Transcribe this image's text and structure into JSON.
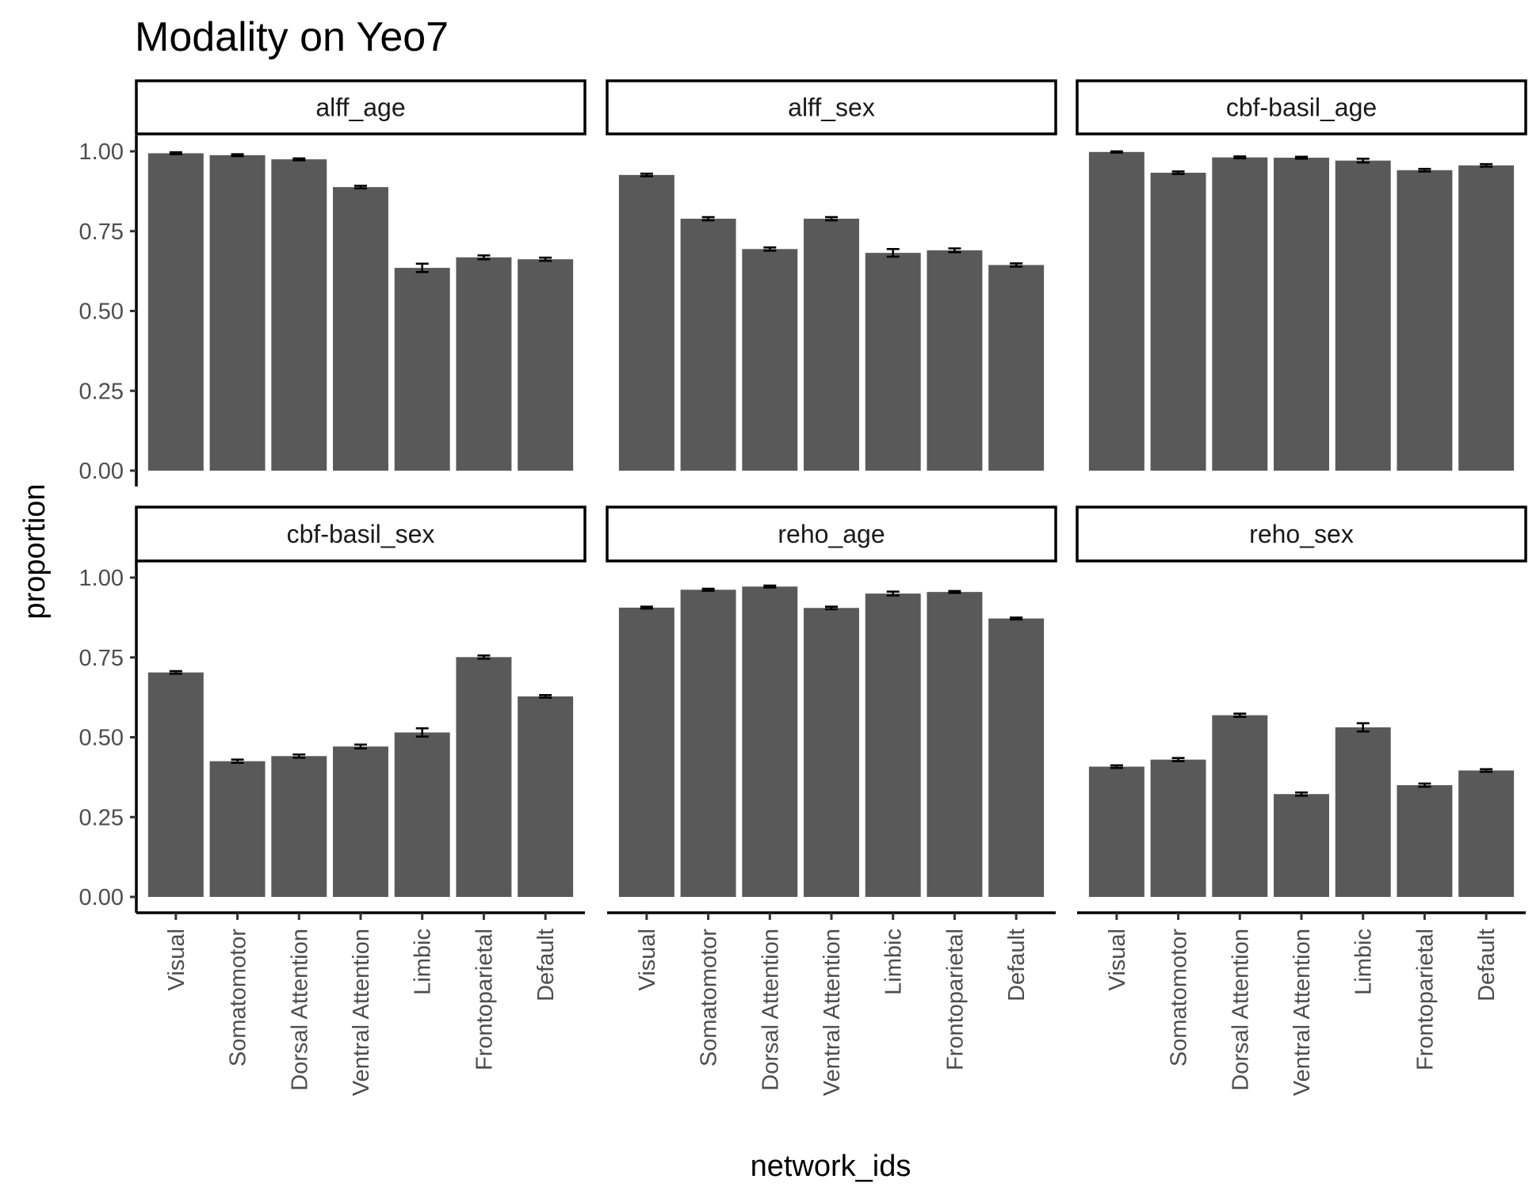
{
  "chart_data": {
    "type": "bar",
    "title": "Modality on Yeo7",
    "xlabel": "network_ids",
    "ylabel": "proportion",
    "ylim": [
      0,
      1.05
    ],
    "yticks": [
      0,
      0.25,
      0.5,
      0.75,
      1
    ],
    "ytick_labels": [
      "0.00",
      "0.25",
      "0.50",
      "0.75",
      "1.00"
    ],
    "categories": [
      "Visual",
      "Somatomotor",
      "Dorsal Attention",
      "Ventral Attention",
      "Limbic",
      "Frontoparietal",
      "Default"
    ],
    "grid": false,
    "legend": "none",
    "bar_color": "#595959",
    "facets": [
      {
        "name": "alff_age",
        "values": [
          0.994,
          0.988,
          0.975,
          0.888,
          0.635,
          0.668,
          0.662
        ],
        "errors": [
          0.003,
          0.003,
          0.003,
          0.004,
          0.013,
          0.006,
          0.005
        ]
      },
      {
        "name": "alff_sex",
        "values": [
          0.926,
          0.789,
          0.694,
          0.789,
          0.682,
          0.69,
          0.644
        ],
        "errors": [
          0.004,
          0.005,
          0.005,
          0.005,
          0.012,
          0.006,
          0.005
        ]
      },
      {
        "name": "cbf-basil_age",
        "values": [
          0.998,
          0.933,
          0.981,
          0.98,
          0.971,
          0.941,
          0.956
        ],
        "errors": [
          0.002,
          0.004,
          0.003,
          0.003,
          0.006,
          0.004,
          0.004
        ]
      },
      {
        "name": "cbf-basil_sex",
        "values": [
          0.703,
          0.425,
          0.441,
          0.471,
          0.515,
          0.751,
          0.628
        ],
        "errors": [
          0.004,
          0.005,
          0.005,
          0.006,
          0.013,
          0.005,
          0.004
        ]
      },
      {
        "name": "reho_age",
        "values": [
          0.906,
          0.962,
          0.972,
          0.905,
          0.95,
          0.955,
          0.872
        ],
        "errors": [
          0.003,
          0.003,
          0.003,
          0.004,
          0.006,
          0.003,
          0.003
        ]
      },
      {
        "name": "reho_sex",
        "values": [
          0.408,
          0.43,
          0.569,
          0.322,
          0.531,
          0.35,
          0.396
        ],
        "errors": [
          0.004,
          0.005,
          0.005,
          0.005,
          0.013,
          0.005,
          0.004
        ]
      }
    ]
  }
}
